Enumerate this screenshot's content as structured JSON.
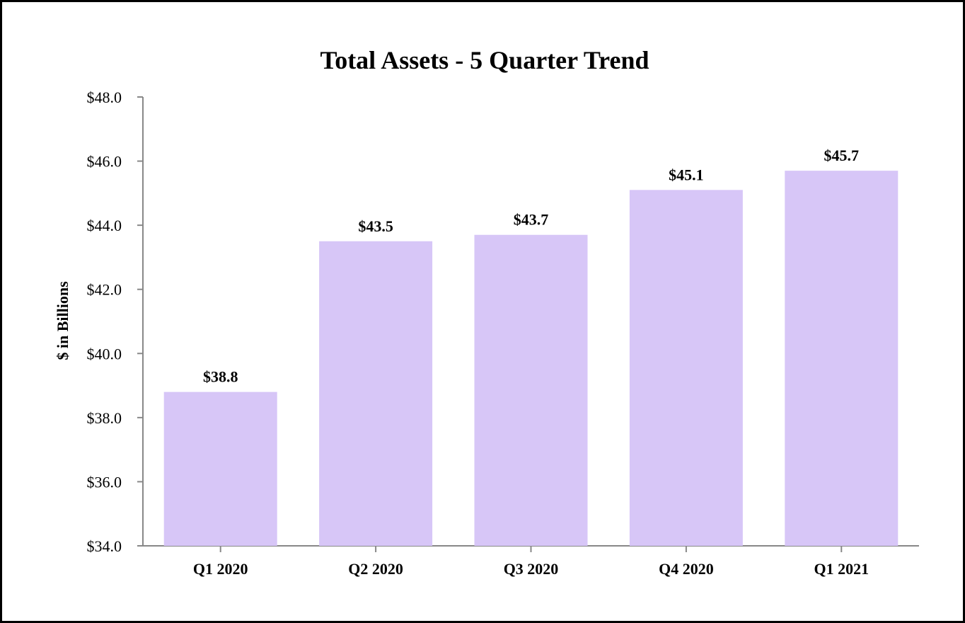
{
  "chart_data": {
    "type": "bar",
    "title": "Total Assets - 5 Quarter Trend",
    "xlabel": "",
    "ylabel": "$ in Billions",
    "categories": [
      "Q1 2020",
      "Q2 2020",
      "Q3 2020",
      "Q4 2020",
      "Q1 2021"
    ],
    "values": [
      38.8,
      43.5,
      43.7,
      45.1,
      45.7
    ],
    "data_labels": [
      "$38.8",
      "$43.5",
      "$43.7",
      "$45.1",
      "$45.7"
    ],
    "ylim": [
      34.0,
      48.0
    ],
    "yticks": [
      34.0,
      36.0,
      38.0,
      40.0,
      42.0,
      44.0,
      46.0,
      48.0
    ],
    "ytick_labels": [
      "$34.0",
      "$36.0",
      "$38.0",
      "$40.0",
      "$42.0",
      "$44.0",
      "$46.0",
      "$48.0"
    ],
    "grid": false,
    "legend": "none",
    "colors": {
      "bar": "#d7c6f7",
      "axis": "#888888",
      "text": "#000000",
      "border": "#000000"
    }
  }
}
